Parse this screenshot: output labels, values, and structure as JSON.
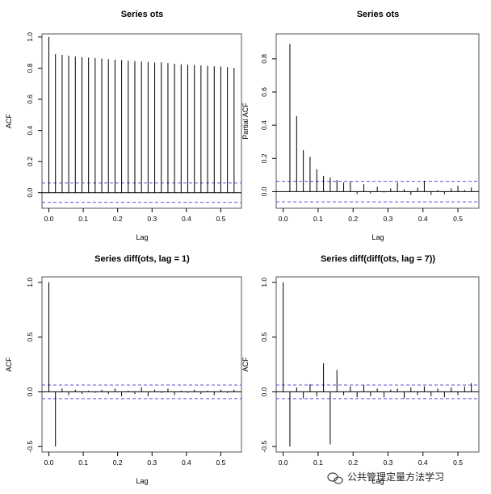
{
  "chart_data": [
    {
      "type": "bar",
      "title": "Series  ots",
      "xlabel": "Lag",
      "ylabel": "ACF",
      "xlim": [
        -0.02,
        0.56
      ],
      "ylim": [
        -0.1,
        1.02
      ],
      "xticks": [
        "0.0",
        "0.1",
        "0.2",
        "0.3",
        "0.4",
        "0.5"
      ],
      "yticks": [
        "0.0",
        "0.2",
        "0.4",
        "0.6",
        "0.8",
        "1.0"
      ],
      "confidence_band": [
        0.062,
        -0.062
      ],
      "x": [
        0.0,
        0.0192,
        0.0385,
        0.0577,
        0.0769,
        0.0962,
        0.1154,
        0.1346,
        0.1538,
        0.1731,
        0.1923,
        0.2115,
        0.2308,
        0.25,
        0.2692,
        0.2885,
        0.3077,
        0.3269,
        0.3462,
        0.3654,
        0.3846,
        0.4038,
        0.4231,
        0.4423,
        0.4615,
        0.4808,
        0.5,
        0.5192,
        0.5385
      ],
      "values": [
        1.0,
        0.89,
        0.885,
        0.88,
        0.875,
        0.87,
        0.868,
        0.865,
        0.862,
        0.858,
        0.855,
        0.852,
        0.848,
        0.845,
        0.843,
        0.84,
        0.836,
        0.838,
        0.833,
        0.828,
        0.825,
        0.822,
        0.82,
        0.818,
        0.815,
        0.812,
        0.81,
        0.806,
        0.802
      ]
    },
    {
      "type": "bar",
      "title": "Series  ots",
      "xlabel": "Lag",
      "ylabel": "Partial ACF",
      "xlim": [
        -0.02,
        0.56
      ],
      "ylim": [
        -0.1,
        0.95
      ],
      "xticks": [
        "0.0",
        "0.1",
        "0.2",
        "0.3",
        "0.4",
        "0.5"
      ],
      "yticks": [
        "0.0",
        "0.2",
        "0.4",
        "0.6",
        "0.8"
      ],
      "confidence_band": [
        0.062,
        -0.062
      ],
      "x": [
        0.0192,
        0.0385,
        0.0577,
        0.0769,
        0.0962,
        0.1154,
        0.1346,
        0.1538,
        0.1731,
        0.1923,
        0.2115,
        0.2308,
        0.25,
        0.2692,
        0.2885,
        0.3077,
        0.3269,
        0.3462,
        0.3654,
        0.3846,
        0.4038,
        0.4231,
        0.4423,
        0.4615,
        0.4808,
        0.5,
        0.5192,
        0.5385
      ],
      "values": [
        0.89,
        0.455,
        0.25,
        0.21,
        0.135,
        0.095,
        0.085,
        0.07,
        0.055,
        0.06,
        -0.015,
        0.045,
        -0.01,
        0.03,
        -0.005,
        0.02,
        0.055,
        0.015,
        -0.02,
        0.025,
        0.065,
        -0.02,
        0.01,
        -0.015,
        0.02,
        0.035,
        0.01,
        0.025
      ]
    },
    {
      "type": "bar",
      "title": "Series  diff(ots, lag = 1)",
      "xlabel": "Lag",
      "ylabel": "ACF",
      "xlim": [
        -0.02,
        0.56
      ],
      "ylim": [
        -0.55,
        1.05
      ],
      "xticks": [
        "0.0",
        "0.1",
        "0.2",
        "0.3",
        "0.4",
        "0.5"
      ],
      "yticks": [
        "-0.5",
        "0.0",
        "0.5",
        "1.0"
      ],
      "confidence_band": [
        0.062,
        -0.062
      ],
      "x": [
        0.0,
        0.0192,
        0.0385,
        0.0577,
        0.0769,
        0.0962,
        0.1154,
        0.1346,
        0.1538,
        0.1731,
        0.1923,
        0.2115,
        0.2308,
        0.25,
        0.2692,
        0.2885,
        0.3077,
        0.3269,
        0.3462,
        0.3654,
        0.3846,
        0.4038,
        0.4231,
        0.4423,
        0.4615,
        0.4808,
        0.5,
        0.5192,
        0.5385
      ],
      "values": [
        1.0,
        -0.5,
        0.03,
        -0.03,
        0.02,
        -0.02,
        0.01,
        -0.01,
        0.02,
        -0.02,
        0.03,
        -0.04,
        0.01,
        -0.02,
        0.04,
        -0.04,
        0.02,
        -0.01,
        0.03,
        -0.03,
        0.01,
        -0.01,
        0.02,
        -0.02,
        0.01,
        -0.03,
        0.02,
        -0.01,
        0.02
      ]
    },
    {
      "type": "bar",
      "title": "Series  diff(diff(ots, lag = 7))",
      "xlabel": "Lag",
      "ylabel": "ACF",
      "xlim": [
        -0.02,
        0.56
      ],
      "ylim": [
        -0.55,
        1.05
      ],
      "xticks": [
        "0.0",
        "0.1",
        "0.2",
        "0.3",
        "0.4",
        "0.5"
      ],
      "yticks": [
        "-0.5",
        "0.0",
        "0.5",
        "1.0"
      ],
      "confidence_band": [
        0.062,
        -0.062
      ],
      "x": [
        0.0,
        0.0192,
        0.0385,
        0.0577,
        0.0769,
        0.0962,
        0.1154,
        0.1346,
        0.1538,
        0.1731,
        0.1923,
        0.2115,
        0.2308,
        0.25,
        0.2692,
        0.2885,
        0.3077,
        0.3269,
        0.3462,
        0.3654,
        0.3846,
        0.4038,
        0.4231,
        0.4423,
        0.4615,
        0.4808,
        0.5,
        0.5192,
        0.5385
      ],
      "values": [
        1.0,
        -0.5,
        0.04,
        -0.06,
        0.07,
        -0.04,
        0.26,
        -0.48,
        0.2,
        -0.03,
        0.05,
        -0.05,
        0.06,
        -0.04,
        0.03,
        -0.05,
        0.02,
        0.03,
        -0.06,
        0.04,
        -0.03,
        0.05,
        -0.04,
        0.03,
        -0.05,
        0.04,
        -0.03,
        0.05,
        0.08
      ]
    }
  ],
  "watermark": {
    "text": "公共管理定量方法学习",
    "icon": "wechat-icon"
  },
  "colors": {
    "band": "#5555dd",
    "bars": "#000000",
    "frame": "#555555"
  }
}
